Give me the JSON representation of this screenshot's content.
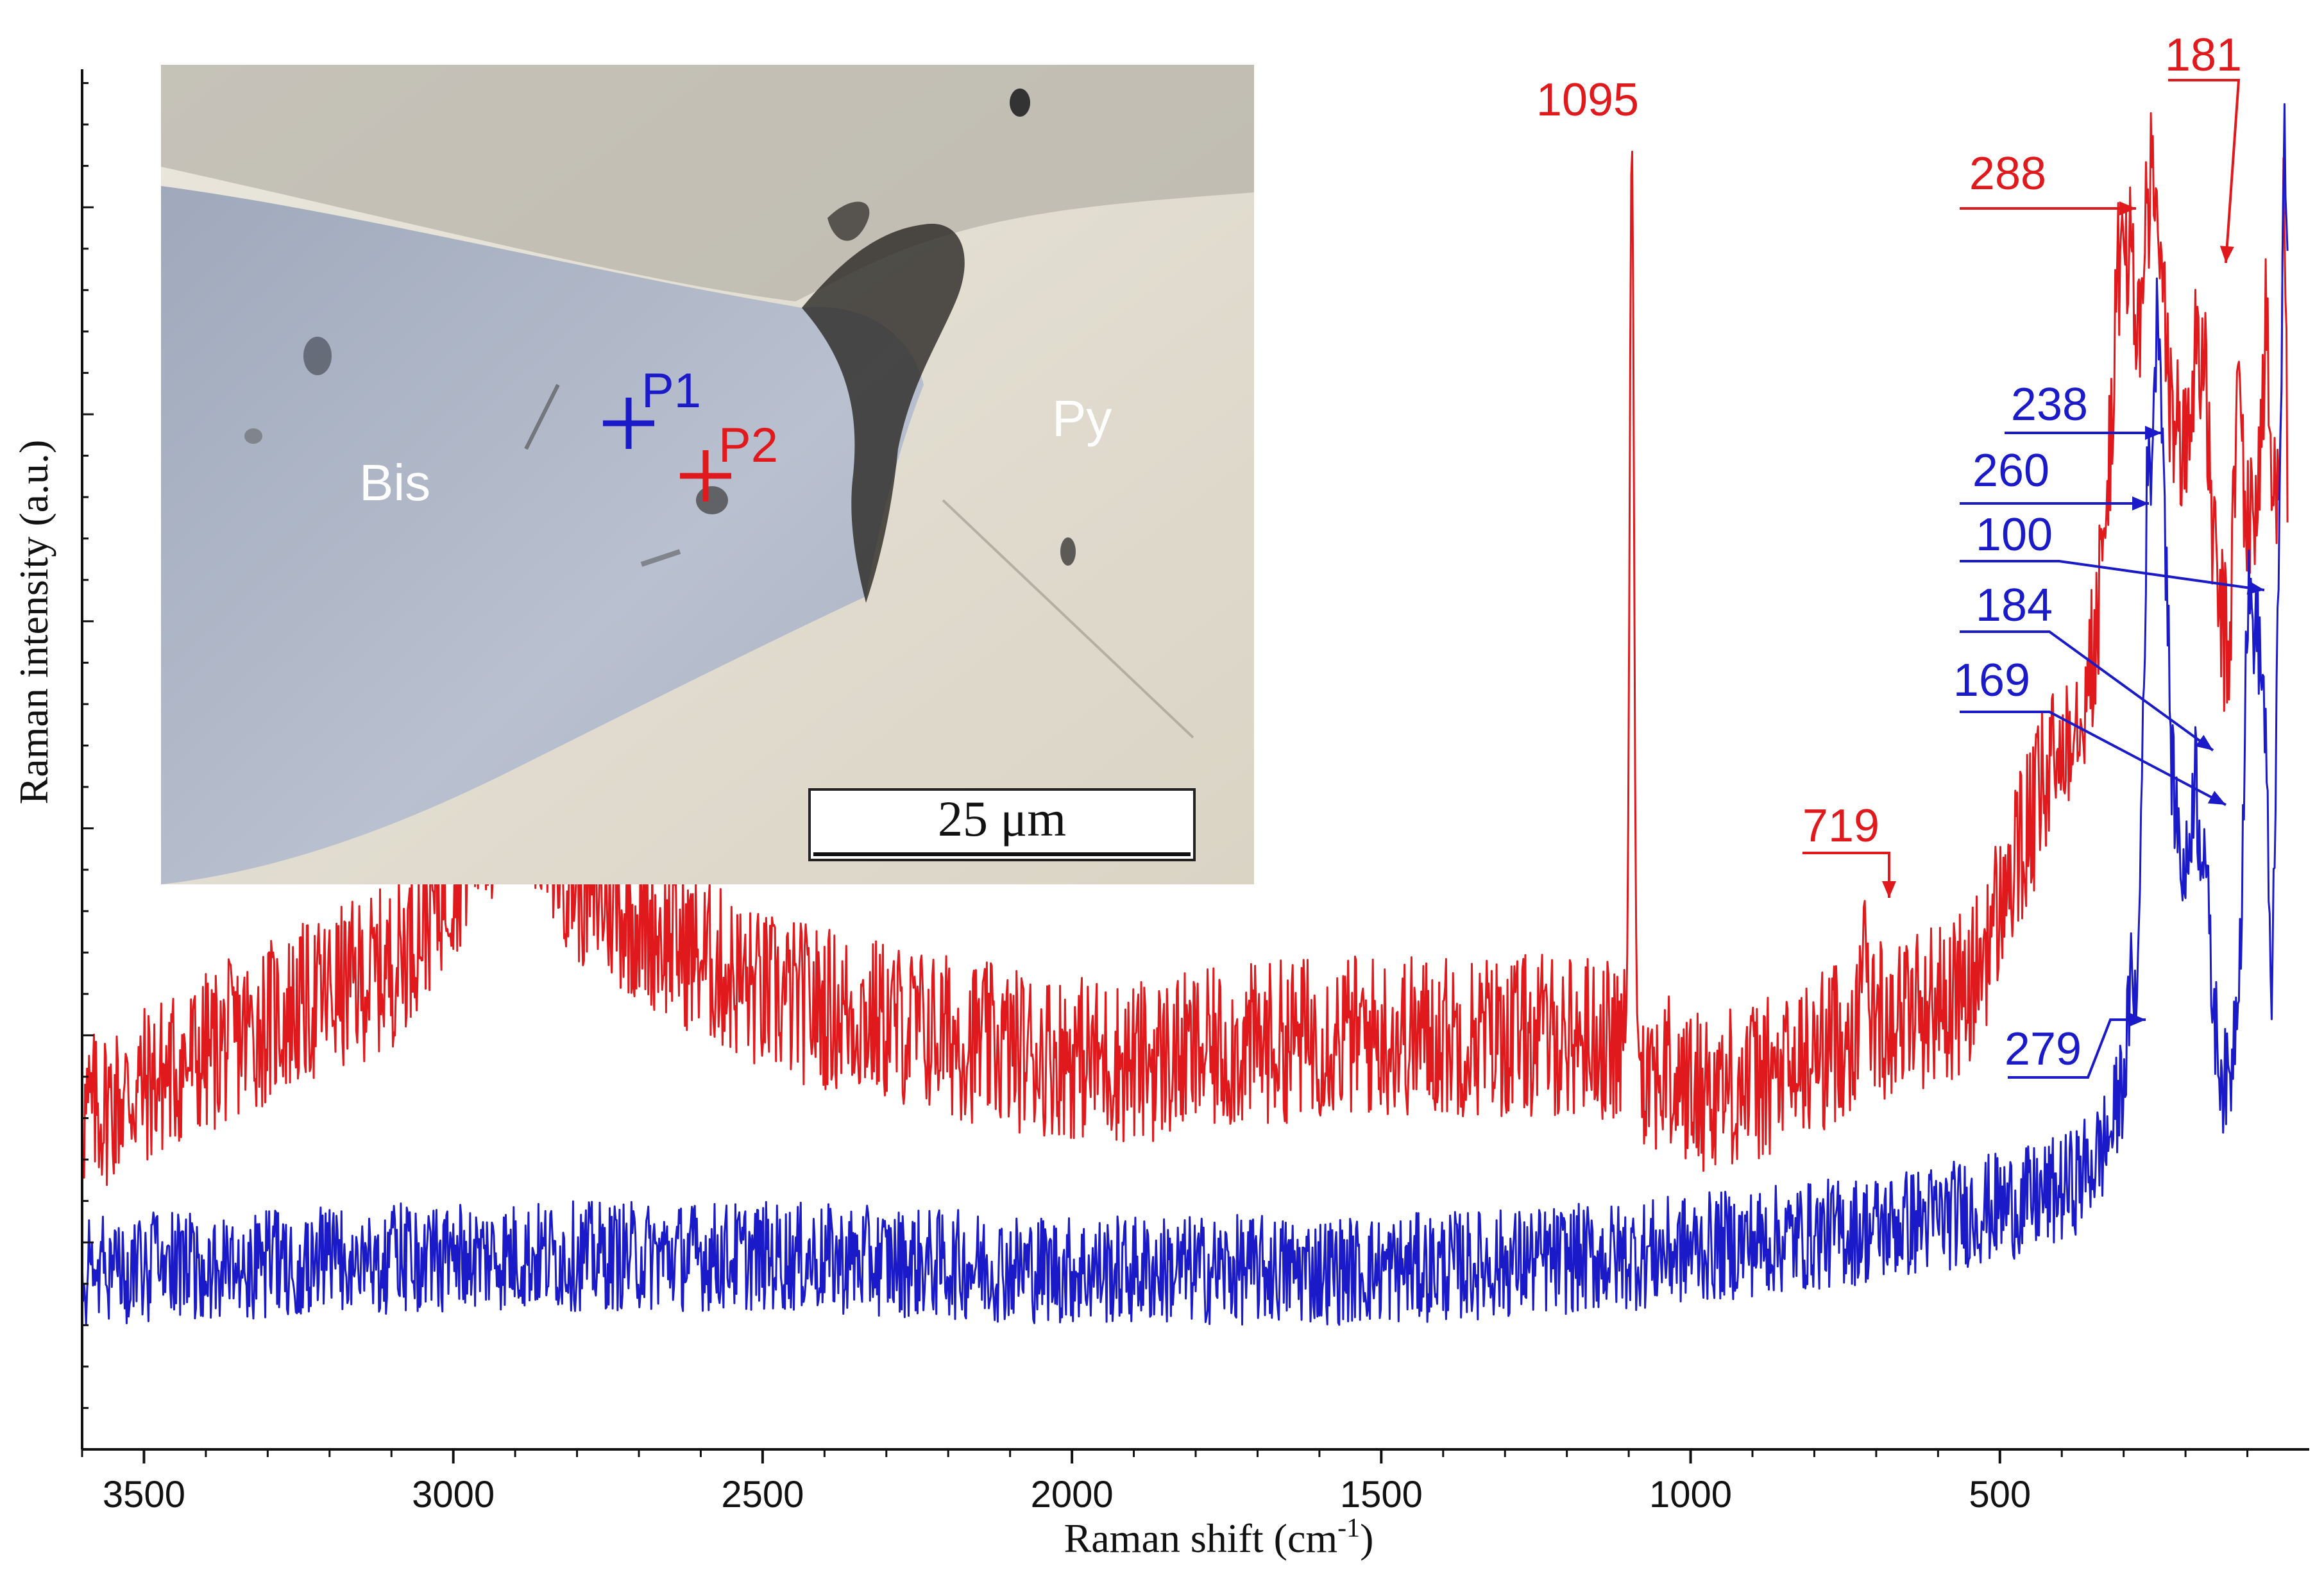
{
  "chart_data": {
    "type": "line",
    "title": "",
    "xlabel": "Raman shift (cm",
    "xlabel_sup": "-1",
    "xlabel_close": ")",
    "ylabel": "Raman intensity (a.u.)",
    "xlim": [
      3600,
      0
    ],
    "ylim": [
      0,
      100
    ],
    "x_reversed": true,
    "xticks": [
      3500,
      3000,
      2500,
      2000,
      1500,
      1000,
      500
    ],
    "grid": false,
    "legend": "none",
    "series": [
      {
        "color": "#e0191c",
        "noise": 6,
        "baseline": [
          [
            3600,
            24
          ],
          [
            3300,
            31
          ],
          [
            3100,
            35
          ],
          [
            2950,
            45
          ],
          [
            2880,
            47
          ],
          [
            2800,
            41
          ],
          [
            2500,
            33
          ],
          [
            2100,
            29
          ],
          [
            1900,
            28
          ],
          [
            1600,
            30
          ],
          [
            1300,
            30
          ],
          [
            1150,
            30
          ],
          [
            1000,
            26
          ],
          [
            850,
            27
          ],
          [
            720,
            31
          ],
          [
            550,
            33
          ],
          [
            470,
            43
          ],
          [
            350,
            57
          ],
          [
            330,
            66
          ],
          [
            310,
            84
          ],
          [
            295,
            88
          ],
          [
            288,
            86
          ],
          [
            275,
            80
          ],
          [
            265,
            88
          ],
          [
            255,
            92
          ],
          [
            240,
            86
          ],
          [
            230,
            78
          ],
          [
            215,
            74
          ],
          [
            200,
            72
          ],
          [
            190,
            76
          ],
          [
            181,
            82
          ],
          [
            170,
            78
          ],
          [
            150,
            62
          ],
          [
            130,
            57
          ],
          [
            115,
            78
          ],
          [
            100,
            66
          ],
          [
            80,
            71
          ],
          [
            70,
            82
          ],
          [
            60,
            68
          ],
          [
            48,
            74
          ],
          [
            40,
            92
          ],
          [
            35,
            70
          ]
        ],
        "peaks": [
          {
            "label": "1095",
            "x": 1095,
            "y": 95,
            "width": 7
          },
          {
            "label": "719",
            "x": 719,
            "y": 40,
            "width": 5
          }
        ]
      },
      {
        "color": "#1a1ac8",
        "noise": 4,
        "baseline": [
          [
            3600,
            13
          ],
          [
            3000,
            14
          ],
          [
            2500,
            14
          ],
          [
            2000,
            13
          ],
          [
            1500,
            13
          ],
          [
            1100,
            14
          ],
          [
            700,
            16
          ],
          [
            450,
            18
          ],
          [
            390,
            19
          ],
          [
            345,
            21
          ],
          [
            320,
            23
          ],
          [
            300,
            27
          ],
          [
            290,
            32
          ],
          [
            285,
            36
          ],
          [
            279,
            30
          ],
          [
            270,
            50
          ],
          [
            262,
            70
          ],
          [
            255,
            72
          ],
          [
            248,
            80
          ],
          [
            244,
            84
          ],
          [
            238,
            76
          ],
          [
            230,
            62
          ],
          [
            222,
            49
          ],
          [
            210,
            44
          ],
          [
            200,
            41
          ],
          [
            192,
            45
          ],
          [
            184,
            50
          ],
          [
            178,
            44
          ],
          [
            169,
            45
          ],
          [
            160,
            35
          ],
          [
            150,
            30
          ],
          [
            140,
            27
          ],
          [
            130,
            26
          ],
          [
            120,
            31
          ],
          [
            110,
            39
          ],
          [
            100,
            62
          ],
          [
            90,
            60
          ],
          [
            80,
            58
          ],
          [
            70,
            52
          ],
          [
            62,
            30
          ],
          [
            55,
            48
          ],
          [
            50,
            60
          ],
          [
            44,
            82
          ],
          [
            40,
            95
          ],
          [
            35,
            88
          ]
        ],
        "peaks": []
      }
    ],
    "annotations": [
      {
        "label": "1095",
        "color": "#e0191c"
      },
      {
        "label": "719",
        "color": "#e0191c"
      },
      {
        "label": "288",
        "color": "#e0191c"
      },
      {
        "label": "181",
        "color": "#e0191c"
      },
      {
        "label": "238",
        "color": "#1a1ac8"
      },
      {
        "label": "260",
        "color": "#1a1ac8"
      },
      {
        "label": "100",
        "color": "#1a1ac8"
      },
      {
        "label": "184",
        "color": "#1a1ac8"
      },
      {
        "label": "169",
        "color": "#1a1ac8"
      },
      {
        "label": "279",
        "color": "#1a1ac8"
      }
    ],
    "inset": {
      "labels": {
        "bis": "Bis",
        "py": "Py",
        "p1": "P1",
        "p2": "P2"
      },
      "scale_bar": "25 μm",
      "colors": {
        "p1": "#1a1ac8",
        "p2": "#e0191c",
        "label": "#ffffff"
      }
    }
  }
}
